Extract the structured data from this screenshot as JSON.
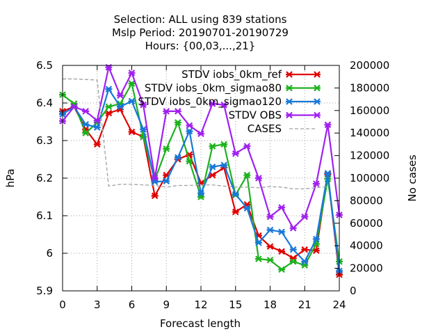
{
  "chart_data": {
    "type": "line",
    "title_lines": [
      "Selection: ALL using   839 stations",
      "Mslp   Period: 20190701-20190729",
      "Hours: {00,03,...,21}"
    ],
    "xlabel": "Forecast length",
    "ylabel": "hPa",
    "y2label": "No cases",
    "xlim": [
      0,
      24
    ],
    "ylim": [
      5.9,
      6.5
    ],
    "y2lim": [
      0,
      200000
    ],
    "xticks": [
      0,
      3,
      6,
      9,
      12,
      15,
      18,
      21,
      24
    ],
    "yticks": [
      5.9,
      6,
      6.1,
      6.2,
      6.3,
      6.4,
      6.5
    ],
    "y2ticks": [
      0,
      20000,
      40000,
      60000,
      80000,
      100000,
      120000,
      140000,
      160000,
      180000,
      200000
    ],
    "grid": true,
    "legend_position": "top-right",
    "x": [
      0,
      1,
      2,
      3,
      4,
      5,
      6,
      7,
      8,
      9,
      10,
      11,
      12,
      13,
      14,
      15,
      16,
      17,
      18,
      19,
      20,
      21,
      22,
      23,
      24
    ],
    "series": [
      {
        "name": "STDV iobs_0km_ref",
        "color": "#e00000",
        "axis": "y",
        "values": [
          6.378,
          6.39,
          6.33,
          6.29,
          6.373,
          6.383,
          6.323,
          6.31,
          6.153,
          6.208,
          6.25,
          6.263,
          6.187,
          6.208,
          6.228,
          6.11,
          6.13,
          6.047,
          6.018,
          6.005,
          5.987,
          6.01,
          6.007,
          6.21,
          5.943
        ]
      },
      {
        "name": "STDV iobs_0km_sigmao80",
        "color": "#1db11d",
        "axis": "y",
        "values": [
          6.422,
          6.398,
          6.32,
          6.348,
          6.39,
          6.398,
          6.452,
          6.31,
          6.195,
          6.278,
          6.348,
          6.245,
          6.15,
          6.285,
          6.29,
          6.155,
          6.208,
          5.985,
          5.982,
          5.957,
          5.978,
          5.968,
          6.025,
          6.198,
          5.978
        ]
      },
      {
        "name": "STDV iobs_0km_sigmao120",
        "color": "#1878d8",
        "axis": "y",
        "values": [
          6.37,
          6.39,
          6.343,
          6.335,
          6.437,
          6.39,
          6.405,
          6.33,
          6.19,
          6.192,
          6.255,
          6.325,
          6.16,
          6.23,
          6.235,
          6.157,
          6.12,
          6.028,
          6.062,
          6.057,
          6.01,
          5.978,
          6.038,
          6.213,
          5.953
        ]
      },
      {
        "name": "STDV OBS",
        "color": "#a020f0",
        "axis": "y",
        "values": [
          6.352,
          6.39,
          6.378,
          6.353,
          6.495,
          6.42,
          6.48,
          6.395,
          6.2,
          6.378,
          6.378,
          6.34,
          6.318,
          6.398,
          6.395,
          6.265,
          6.285,
          6.2,
          6.097,
          6.122,
          6.067,
          6.097,
          6.185,
          6.342,
          6.102
        ]
      },
      {
        "name": "CASES",
        "color": "#a0a0a0",
        "axis": "y2",
        "dashed": true,
        "values": [
          188000,
          188000,
          187500,
          187000,
          93000,
          94500,
          94500,
          94000,
          93500,
          92000,
          93500,
          93500,
          94000,
          94000,
          93000,
          92000,
          92000,
          91500,
          92500,
          92000,
          90500,
          90500,
          91500,
          92500,
          null
        ]
      }
    ]
  }
}
